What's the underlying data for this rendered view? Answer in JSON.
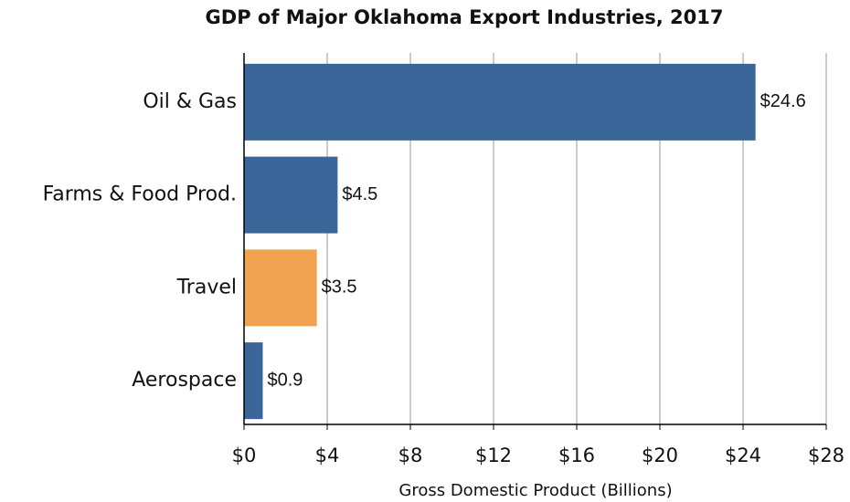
{
  "chart_data": {
    "type": "bar",
    "orientation": "horizontal",
    "title": "GDP of Major Oklahoma Export Industries, 2017",
    "xlabel": "Gross Domestic Product (Billions)",
    "categories": [
      "Oil & Gas",
      "Farms & Food Prod.",
      "Travel",
      "Aerospace"
    ],
    "values": [
      24.6,
      4.5,
      3.5,
      0.9
    ],
    "value_labels": [
      "$24.6",
      "$4.5",
      "$3.5",
      "$0.9"
    ],
    "colors": [
      "#3a6699",
      "#3a6699",
      "#f0a350",
      "#3a6699"
    ],
    "xlim": [
      0,
      28
    ],
    "xticks": [
      {
        "value": 0,
        "label": "$0"
      },
      {
        "value": 4,
        "label": "$4"
      },
      {
        "value": 8,
        "label": "$8"
      },
      {
        "value": 12,
        "label": "$12"
      },
      {
        "value": 16,
        "label": "$16"
      },
      {
        "value": 20,
        "label": "$20"
      },
      {
        "value": 24,
        "label": "$24"
      },
      {
        "value": 28,
        "label": "$28"
      }
    ],
    "grid": true
  }
}
